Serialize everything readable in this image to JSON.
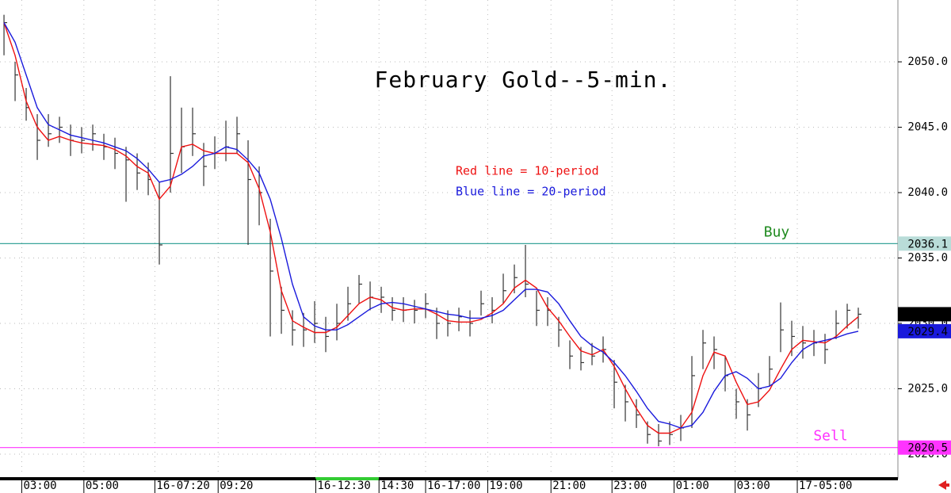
{
  "chart_data": {
    "type": "ohlc",
    "title": "February Gold--5-min.",
    "xlim": [
      -0.36,
      80.57
    ],
    "ylim": [
      2018.36,
      2054.73
    ],
    "grid": true,
    "xticks": [
      {
        "value": 1.6,
        "label": "03:00"
      },
      {
        "value": 7.2,
        "label": "05:00"
      },
      {
        "value": 13.6,
        "label": "16-07:20"
      },
      {
        "value": 19.3,
        "label": "09:20"
      },
      {
        "value": 28.1,
        "label": "16-12:30"
      },
      {
        "value": 33.8,
        "label": "14:30"
      },
      {
        "value": 38,
        "label": "16-17:00"
      },
      {
        "value": 43.6,
        "label": "19:00"
      },
      {
        "value": 49.3,
        "label": "21:00"
      },
      {
        "value": 54.8,
        "label": "23:00"
      },
      {
        "value": 60.4,
        "label": "01:00"
      },
      {
        "value": 65.9,
        "label": "03:00"
      },
      {
        "value": 71.5,
        "label": "17-05:00"
      }
    ],
    "yticks": [
      {
        "value": 2020,
        "label": "2020.0"
      },
      {
        "value": 2025,
        "label": "2025.0"
      },
      {
        "value": 2030,
        "label": "2030.0"
      },
      {
        "value": 2035,
        "label": "2035.0"
      },
      {
        "value": 2040,
        "label": "2040.0"
      },
      {
        "value": 2045,
        "label": "2045.0"
      },
      {
        "value": 2050,
        "label": "2050.0"
      }
    ],
    "bar_color": "#333333",
    "high": [
      2053.6,
      2050,
      2048,
      2046,
      2046,
      2045.8,
      2045.2,
      2045,
      2045.2,
      2044.5,
      2044.2,
      2043.5,
      2043,
      2042.3,
      2040.8,
      2048.9,
      2046.5,
      2046.5,
      2043.8,
      2044.3,
      2045.5,
      2045.8,
      2044,
      2042,
      2038,
      2032.8,
      2031,
      2030.8,
      2031.7,
      2030.5,
      2031.5,
      2032.8,
      2033.7,
      2033.2,
      2032.8,
      2032,
      2032,
      2031.8,
      2032.3,
      2031.2,
      2031,
      2031.2,
      2031,
      2032.5,
      2032,
      2033.8,
      2034.5,
      2036,
      2032.5,
      2032,
      2030.5,
      2028.7,
      2028.2,
      2028.5,
      2029,
      2027.2,
      2025.3,
      2024.2,
      2022.5,
      2022.3,
      2022.5,
      2023,
      2027.5,
      2029.5,
      2029,
      2027.5,
      2025,
      2024.2,
      2026.2,
      2027.5,
      2031.6,
      2030.2,
      2029.8,
      2029.5,
      2029.2,
      2031,
      2031.5,
      2031.2
    ],
    "low": [
      2050.5,
      2047,
      2045.5,
      2042.5,
      2043.5,
      2043.8,
      2042.8,
      2043,
      2043.2,
      2042.5,
      2041.8,
      2039.3,
      2040.2,
      2039.8,
      2034.5,
      2040,
      2041.5,
      2042.8,
      2040.5,
      2041.8,
      2042.4,
      2043,
      2036,
      2037.5,
      2029,
      2029.2,
      2028.3,
      2028.2,
      2028.5,
      2027.8,
      2028.7,
      2030.2,
      2031.5,
      2031,
      2030.8,
      2030.2,
      2030.1,
      2030,
      2030.4,
      2028.8,
      2029,
      2029.4,
      2029,
      2030.6,
      2030,
      2031.5,
      2032.3,
      2032,
      2029.8,
      2029.8,
      2028.2,
      2026.5,
      2026.4,
      2026.8,
      2027,
      2023.5,
      2022.5,
      2022,
      2020.8,
      2020.6,
      2020.7,
      2021,
      2022,
      2026.5,
      2026.5,
      2024.8,
      2022.7,
      2021.8,
      2023.6,
      2025.2,
      2027.8,
      2027.5,
      2027.3,
      2027.5,
      2026.9,
      2028.8,
      2029.6,
      2029.6
    ],
    "close": [
      2053,
      2049,
      2046.5,
      2044,
      2044.5,
      2045,
      2044,
      2044,
      2044.5,
      2043.5,
      2043,
      2042.5,
      2041.5,
      2041,
      2036,
      2043,
      2043.5,
      2044.5,
      2042,
      2043,
      2043.5,
      2044.5,
      2041,
      2040,
      2034,
      2031,
      2029.5,
      2029.5,
      2030,
      2029,
      2030,
      2031.5,
      2033,
      2032,
      2032,
      2031,
      2031,
      2031,
      2031.5,
      2030,
      2030,
      2030.5,
      2030,
      2031.5,
      2031,
      2032.5,
      2033.5,
      2033,
      2031,
      2031,
      2029.5,
      2027.5,
      2027,
      2027.5,
      2028,
      2025.5,
      2024,
      2023,
      2021.5,
      2021,
      2021.5,
      2022,
      2026,
      2028.5,
      2028,
      2026,
      2024,
      2023,
      2025,
      2026.5,
      2029.5,
      2029,
      2028.5,
      2028.5,
      2028,
      2030,
      2031,
      2030.7
    ],
    "series": [
      {
        "name": "Red line = 10-period",
        "color": "#ee1111",
        "values": [
          2053,
          2050.5,
          2047,
          2045,
          2044,
          2044.3,
          2044,
          2043.8,
          2043.7,
          2043.6,
          2043.3,
          2042.8,
          2042,
          2041.5,
          2039.5,
          2040.5,
          2043.5,
          2043.7,
          2043.2,
          2043,
          2043,
          2043,
          2042.3,
          2040.3,
          2037,
          2032.5,
          2030.2,
          2029.7,
          2029.3,
          2029.3,
          2029.7,
          2030.6,
          2031.5,
          2032,
          2031.8,
          2031.2,
          2031,
          2031.1,
          2031.1,
          2030.7,
          2030.2,
          2030.1,
          2030.1,
          2030.3,
          2030.8,
          2031.5,
          2032.7,
          2033.3,
          2032.7,
          2031.2,
          2030.2,
          2029,
          2027.9,
          2027.6,
          2028,
          2026.7,
          2025,
          2023.5,
          2022.2,
          2021.6,
          2021.6,
          2022,
          2023.2,
          2026,
          2027.8,
          2027.5,
          2025.5,
          2023.8,
          2024,
          2024.9,
          2026.5,
          2028,
          2028.7,
          2028.6,
          2028.5,
          2029,
          2029.8,
          2030.5
        ]
      },
      {
        "name": "Blue line = 20-period",
        "color": "#1a1adc",
        "values": [
          2053,
          2051.5,
          2049,
          2046.5,
          2045.2,
          2044.8,
          2044.4,
          2044.2,
          2044,
          2043.8,
          2043.5,
          2043.2,
          2042.6,
          2041.8,
          2040.8,
          2041,
          2041.4,
          2042,
          2042.8,
          2043,
          2043.5,
          2043.3,
          2042.5,
          2041.5,
          2039.5,
          2036.5,
          2033,
          2030.5,
          2029.8,
          2029.5,
          2029.5,
          2029.9,
          2030.5,
          2031.1,
          2031.5,
          2031.6,
          2031.5,
          2031.3,
          2031.1,
          2030.9,
          2030.7,
          2030.6,
          2030.4,
          2030.4,
          2030.6,
          2031,
          2031.8,
          2032.6,
          2032.6,
          2032.4,
          2031.5,
          2030.2,
          2029,
          2028.3,
          2027.8,
          2027,
          2026,
          2024.8,
          2023.5,
          2022.5,
          2022.3,
          2022,
          2022.2,
          2023.2,
          2024.8,
          2026,
          2026.3,
          2025.8,
          2025,
          2025.2,
          2025.8,
          2027,
          2028,
          2028.5,
          2028.7,
          2028.9,
          2029.2,
          2029.4
        ]
      }
    ],
    "levels": [
      {
        "name": "Buy",
        "value": 2036.1,
        "color": "#3aa59a",
        "box_color": "#b9dcd8",
        "text_color": "#000000"
      },
      {
        "name": "Sell",
        "value": 2020.5,
        "color": "#ff33ff",
        "box_color": "#ff33ff",
        "text_color": "#ffffff"
      }
    ],
    "price_markers": [
      {
        "value": 2030.7,
        "color": "#000000"
      },
      {
        "value": 2029.4,
        "color": "#1a1adc"
      }
    ]
  }
}
